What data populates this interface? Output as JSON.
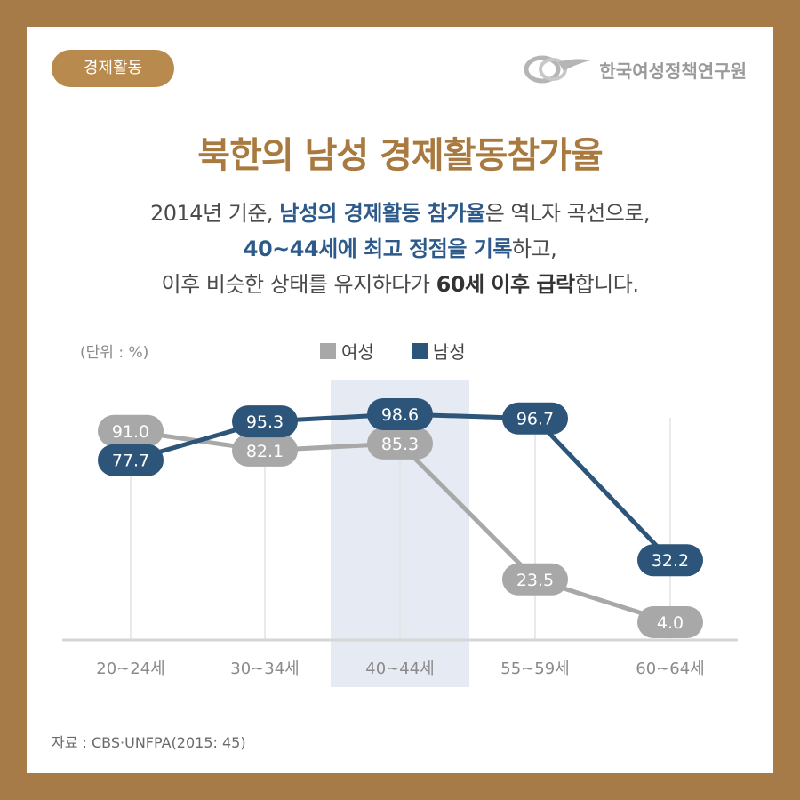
{
  "badge": "경제활동",
  "org_name": "한국여성정책연구원",
  "title": "북한의 남성 경제활동참가율",
  "description": {
    "line1_a": "2014년 기준, ",
    "line1_hl": "남성의 경제활동 참가율",
    "line1_b": "은 역L자 곡선으로,",
    "line2_hl": "40~44세에 최고 정점을 기록",
    "line2_b": "하고,",
    "line3_a": "이후 비슷한 상태를 유지하다가 ",
    "line3_dk": "60세 이후 급락",
    "line3_b": "합니다."
  },
  "unit_label": "(단위 : %)",
  "source": "자료 : CBS·UNFPA(2015: 45)",
  "chart_data": {
    "type": "line",
    "categories": [
      "20~24세",
      "30~34세",
      "40~44세",
      "55~59세",
      "60~64세"
    ],
    "highlight_category": "40~44세",
    "series": [
      {
        "name": "여성",
        "color": "#a8a8a8",
        "values": [
          91.0,
          82.1,
          85.3,
          23.5,
          4.0
        ]
      },
      {
        "name": "남성",
        "color": "#2c5579",
        "values": [
          77.7,
          95.3,
          98.6,
          96.7,
          32.2
        ]
      }
    ],
    "ylim": [
      0,
      110
    ],
    "grid": "vertical",
    "legend_position": "top-center"
  }
}
